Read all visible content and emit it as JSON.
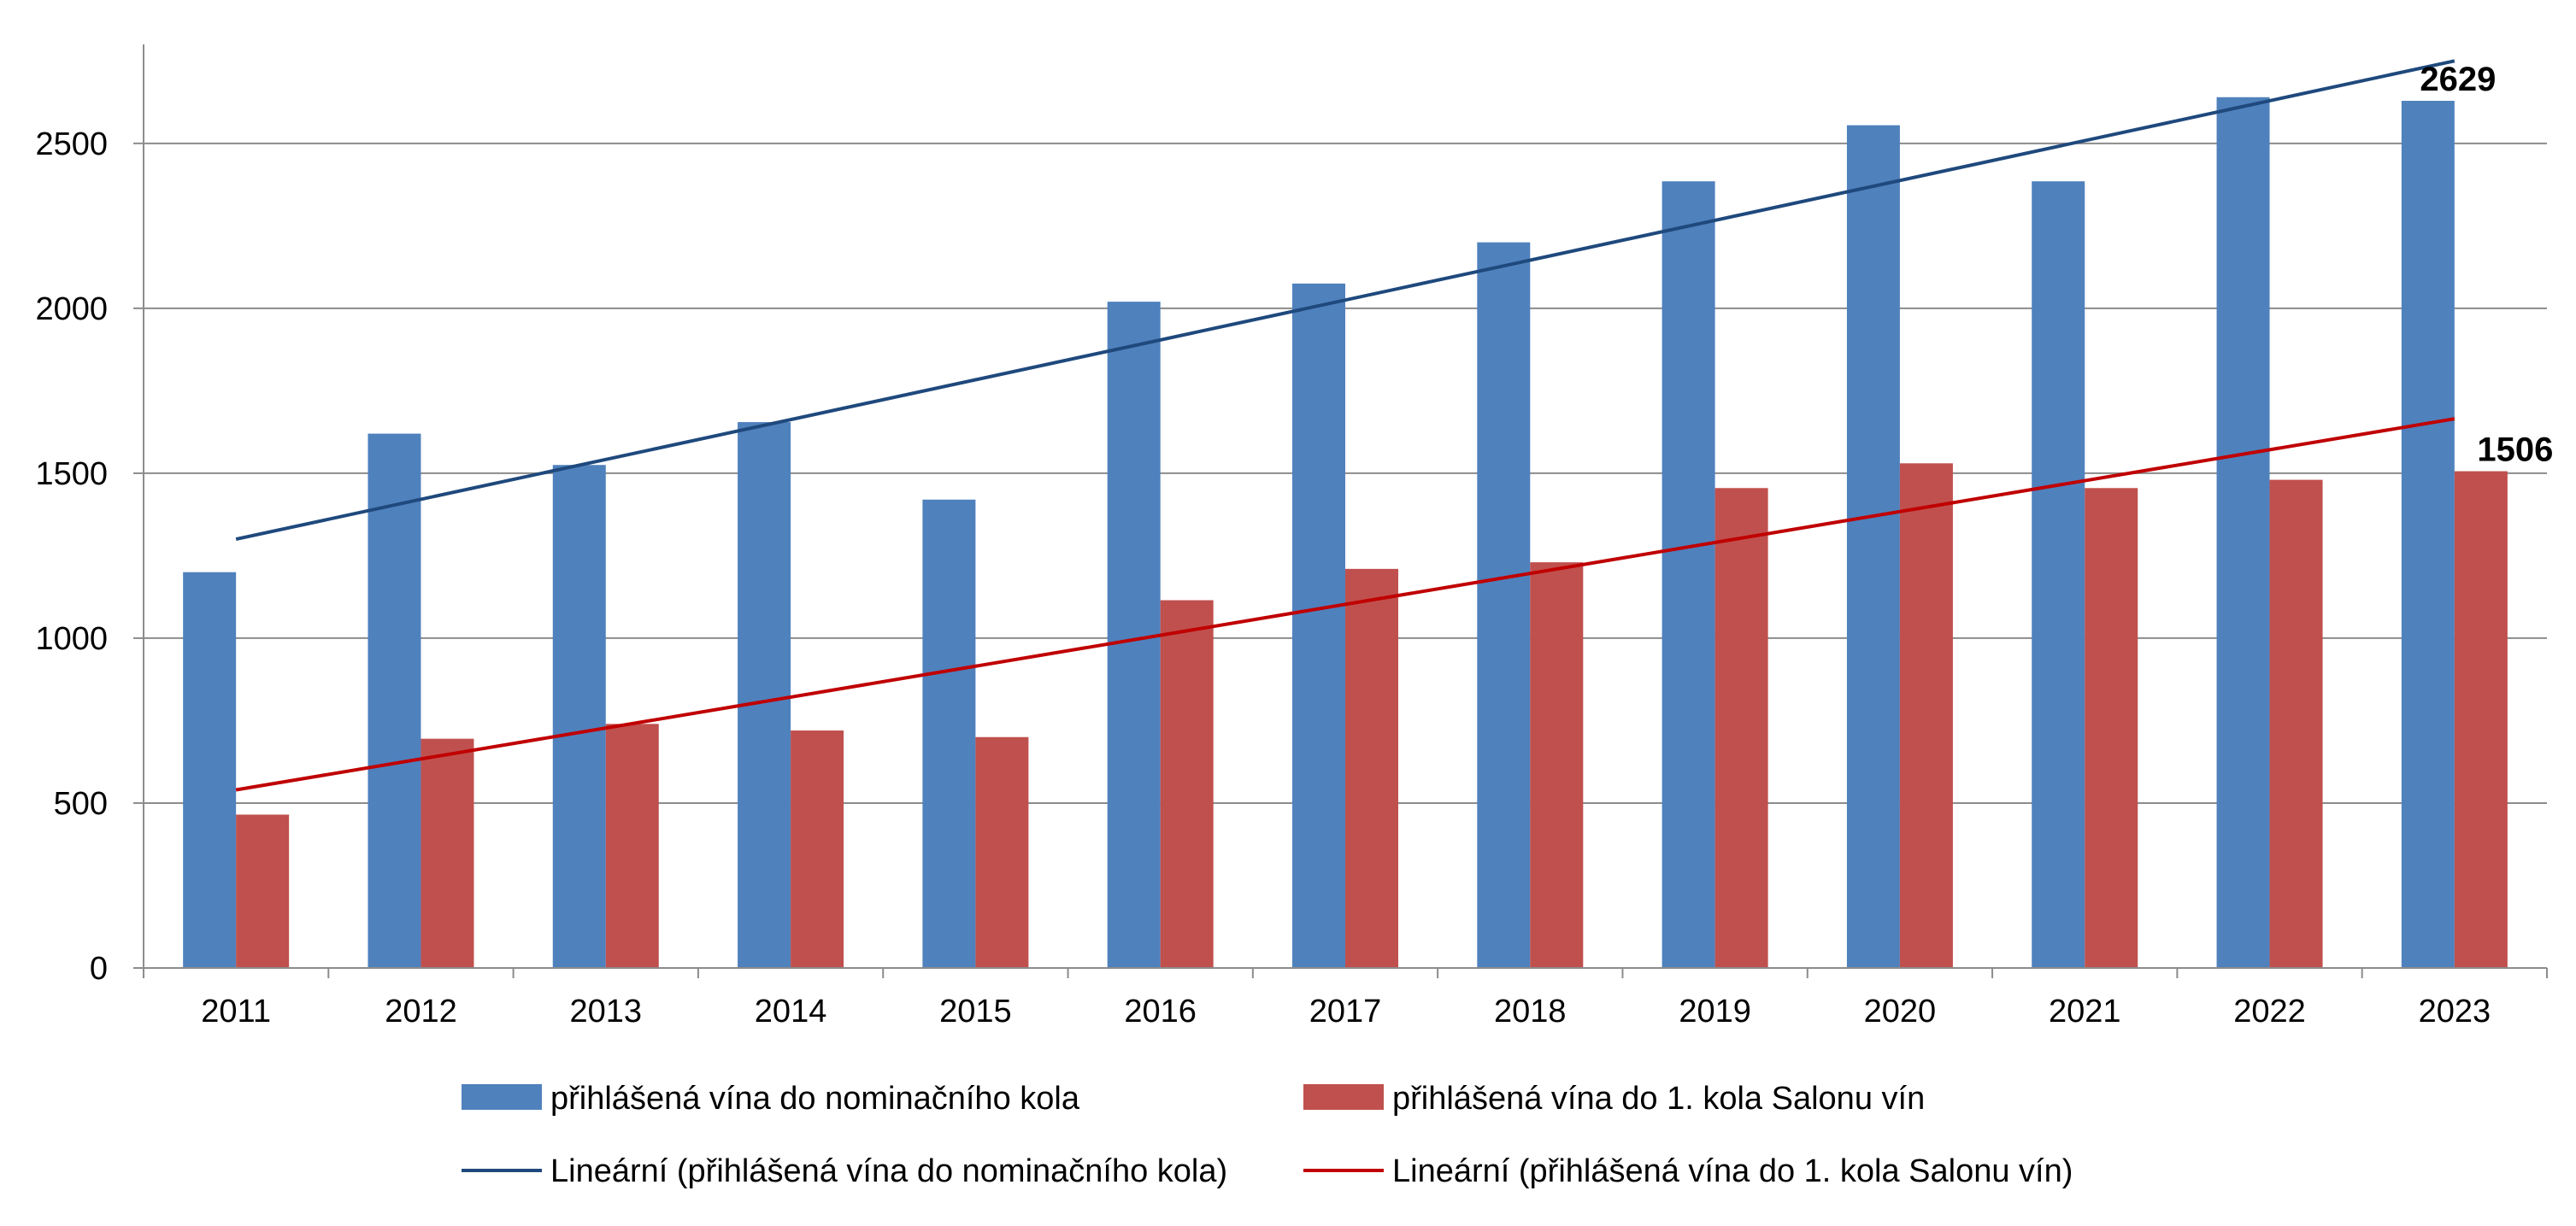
{
  "chart_data": {
    "type": "bar",
    "categories": [
      "2011",
      "2012",
      "2013",
      "2014",
      "2015",
      "2016",
      "2017",
      "2018",
      "2019",
      "2020",
      "2021",
      "2022",
      "2023"
    ],
    "series": [
      {
        "name": "přihlášená vína do nominačního kola",
        "color": "#4F81BD",
        "values": [
          1200,
          1620,
          1525,
          1655,
          1420,
          2020,
          2075,
          2200,
          2385,
          2555,
          2385,
          2640,
          2629
        ]
      },
      {
        "name": "přihlášená vína do 1. kola Salonu vín",
        "color": "#C0504D",
        "values": [
          465,
          695,
          740,
          720,
          700,
          1115,
          1210,
          1230,
          1455,
          1530,
          1455,
          1480,
          1506
        ]
      }
    ],
    "trendlines": [
      {
        "name": "Lineární (přihlášená vína do nominačního kola)",
        "color": "#1F497D",
        "start": 1300,
        "end": 2750
      },
      {
        "name": "Lineární (přihlášená vína do 1. kola Salonu vín)",
        "color": "#C00000",
        "start": 540,
        "end": 1665
      }
    ],
    "data_labels": [
      {
        "series": 0,
        "category": 12,
        "text": "2629"
      },
      {
        "series": 1,
        "category": 12,
        "text": "1506"
      }
    ],
    "y_ticks": [
      "0",
      "500",
      "1000",
      "1500",
      "2000",
      "2500"
    ],
    "ylim": [
      0,
      2800
    ],
    "grid": true,
    "legend_position": "bottom",
    "title": "",
    "xlabel": "",
    "ylabel": ""
  }
}
